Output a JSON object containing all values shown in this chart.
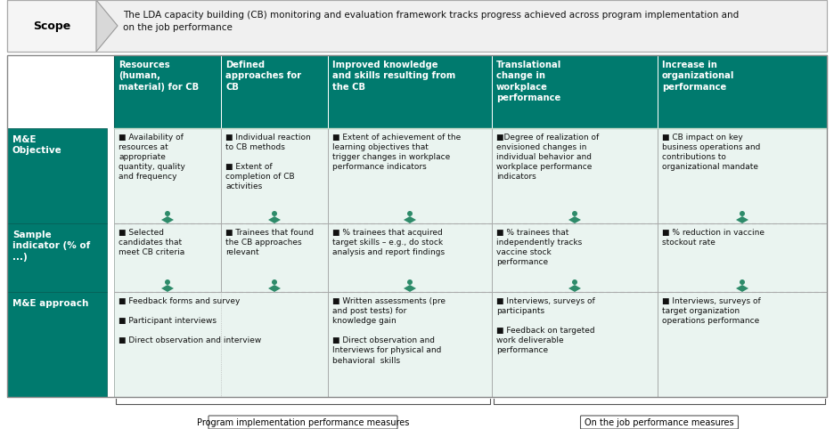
{
  "fig_width": 9.36,
  "fig_height": 4.82,
  "dpi": 100,
  "teal": "#007A6E",
  "white": "#ffffff",
  "cell_bg": "#EAF4F0",
  "scope_text": "The LDA capacity building (CB) monitoring and evaluation framework tracks progress achieved across program implementation and\non the job performance",
  "col_headers": [
    "Resources\n(human,\nmaterial) for CB",
    "Defined\napproaches for\nCB",
    "Improved knowledge\nand skills resulting from\nthe CB",
    "Translational\nchange in\nworkplace\nperformance",
    "Increase in\norganizational\nperformance"
  ],
  "row_labels": [
    "M&E\nObjective",
    "Sample\nindicator (% of\n...)",
    "M&E approach"
  ],
  "row0_cells": [
    "■ Availability of\nresources at\nappropriate\nquantity, quality\nand frequency",
    "■ Individual reaction\nto CB methods\n\n■ Extent of\ncompletion of CB\nactivities",
    "■ Extent of achievement of the\nlearning objectives that\ntrigger changes in workplace\nperformance indicators",
    "■Degree of realization of\nenvisioned changes in\nindividual behavior and\nworkplace performance\nindicators",
    "■ CB impact on key\nbusiness operations and\ncontributions to\norganizational mandate"
  ],
  "row1_cells": [
    "■ Selected\ncandidates that\nmeet CB criteria",
    "■ Trainees that found\nthe CB approaches\nrelevant",
    "■ % trainees that acquired\ntarget skills – e.g., do stock\nanalysis and report findings",
    "■ % trainees that\nindependently tracks\nvaccine stock\nperformance",
    "■ % reduction in vaccine\nstockout rate"
  ],
  "row2_col01": "■ Feedback forms and survey\n\n■ Participant interviews\n\n■ Direct observation and interview",
  "row2_cells": [
    "",
    "",
    "■ Written assessments (pre\nand post tests) for\nknowledge gain\n\n■ Direct observation and\nInterviews for physical and\nbehavioral  skills",
    "■ Interviews, surveys of\nparticipants\n\n■ Feedback on targeted\nwork deliverable\nperformance",
    "■ Interviews, surveys of\ntarget organization\noperations performance"
  ],
  "bottom_labels": [
    "Program implementation performance measures",
    "On the job performance measures"
  ]
}
